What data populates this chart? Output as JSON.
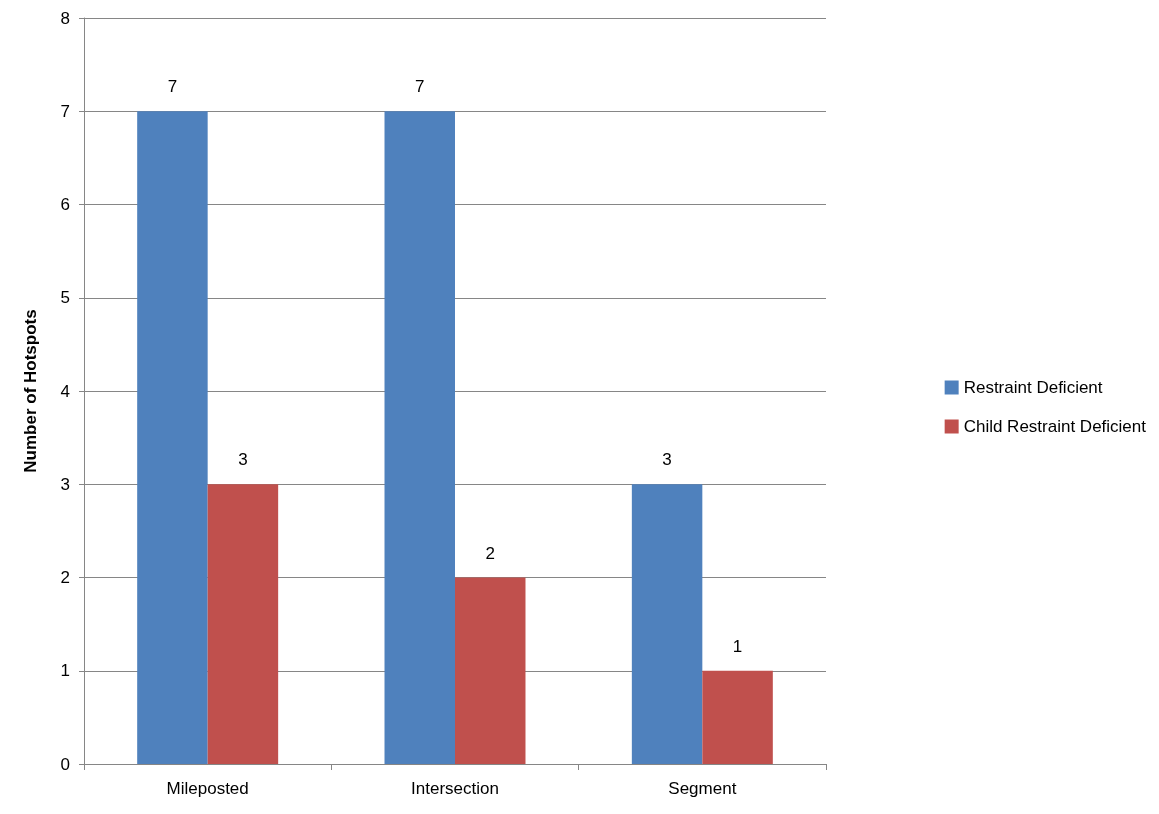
{
  "chart_data": {
    "type": "bar",
    "ylabel": "Number of Hotspots",
    "categories": [
      "Mileposted",
      "Intersection",
      "Segment"
    ],
    "series": [
      {
        "name": "Restraint Deficient",
        "color": "#4f81bd",
        "values": [
          7,
          7,
          3
        ]
      },
      {
        "name": "Child Restraint Deficient",
        "color": "#c0504d",
        "values": [
          3,
          2,
          1
        ]
      }
    ],
    "ylim": [
      0,
      8
    ],
    "yticks": [
      0,
      1,
      2,
      3,
      4,
      5,
      6,
      7,
      8
    ],
    "grid": "y",
    "legend": "right",
    "data_labels": true
  }
}
